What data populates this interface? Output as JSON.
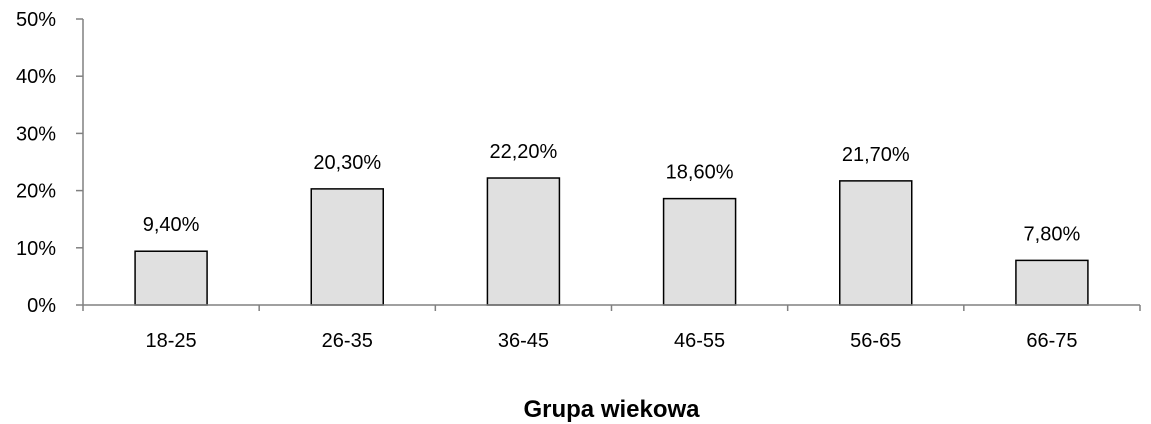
{
  "chart_data": {
    "type": "bar",
    "title": "",
    "xlabel": "Grupa wiekowa",
    "ylabel": "",
    "categories": [
      "18-25",
      "26-35",
      "36-45",
      "46-55",
      "56-65",
      "66-75"
    ],
    "values": [
      9.4,
      20.3,
      22.2,
      18.6,
      21.7,
      7.8
    ],
    "value_labels": [
      "9,40%",
      "20,30%",
      "22,20%",
      "18,60%",
      "21,70%",
      "7,80%"
    ],
    "ylim": [
      0,
      50
    ],
    "yticks": [
      0,
      10,
      20,
      30,
      40,
      50
    ],
    "ytick_labels": [
      "0%",
      "10%",
      "20%",
      "30%",
      "40%",
      "50%"
    ],
    "grid": false,
    "legend": "none",
    "bar_fill": "#e0e0e0",
    "bar_stroke": "#000000",
    "axis_color": "#808080"
  }
}
